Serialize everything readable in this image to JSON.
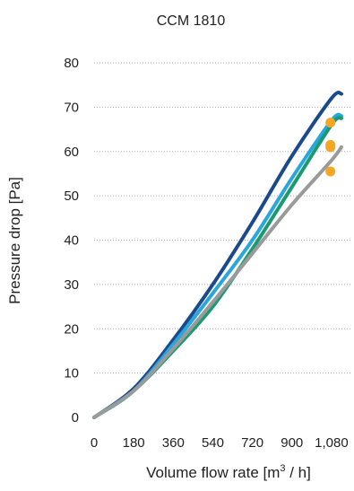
{
  "chart_data": {
    "type": "line",
    "title": "CCM 1810",
    "xlabel_prefix": "Volume flow rate [m",
    "xlabel_sup": "3",
    "xlabel_suffix": " / h]",
    "ylabel": "Pressure drop [Pa]",
    "xlim": [
      0,
      1170
    ],
    "ylim": [
      0,
      80
    ],
    "x_ticks": [
      0,
      180,
      360,
      540,
      720,
      900,
      1080
    ],
    "x_tick_labels": [
      "0",
      "180",
      "360",
      "540",
      "720",
      "900",
      "1,080"
    ],
    "y_ticks": [
      0,
      10,
      20,
      30,
      40,
      50,
      60,
      70,
      80
    ],
    "y_tick_labels": [
      "0",
      "10",
      "20",
      "30",
      "40",
      "50",
      "60",
      "70",
      "80"
    ],
    "grid": "horizontal-dotted",
    "series": [
      {
        "color": "#1a4a8c",
        "x": [
          0,
          180,
          360,
          540,
          720,
          900,
          1080,
          1125
        ],
        "y": [
          0,
          6.5,
          17.5,
          30,
          44,
          59,
          72,
          73
        ]
      },
      {
        "color": "#29a6dc",
        "x": [
          0,
          180,
          360,
          540,
          720,
          900,
          1080,
          1125
        ],
        "y": [
          0,
          6,
          16.5,
          28,
          40,
          54,
          67,
          68
        ]
      },
      {
        "color": "#1a9a72",
        "x": [
          0,
          180,
          360,
          540,
          720,
          900,
          1080,
          1125
        ],
        "y": [
          0,
          6,
          15,
          25,
          38,
          52,
          66,
          67.5
        ]
      },
      {
        "color": "#9a9a9a",
        "x": [
          0,
          180,
          360,
          540,
          720,
          900,
          1080,
          1125
        ],
        "y": [
          0,
          6,
          15.5,
          26,
          37,
          48,
          58,
          61
        ]
      }
    ],
    "points": [
      {
        "color": "#f5a623",
        "x": 1075,
        "y": 66.5
      },
      {
        "color": "#f5a623",
        "x": 1075,
        "y": 61.5
      },
      {
        "color": "#f5a623",
        "x": 1075,
        "y": 61
      },
      {
        "color": "#f5a623",
        "x": 1075,
        "y": 55.5
      }
    ]
  }
}
